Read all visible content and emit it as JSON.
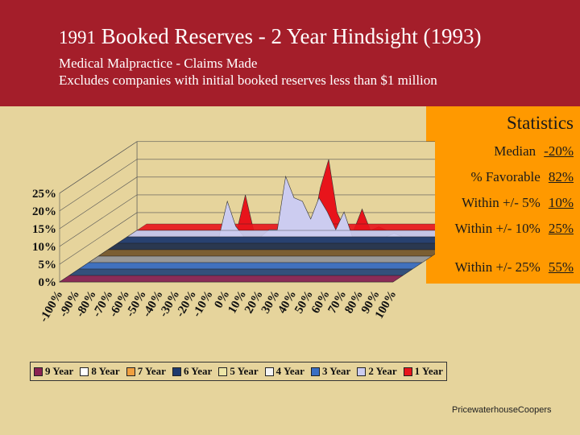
{
  "header": {
    "title_year": "1991",
    "title_rest": "Booked Reserves - 2 Year Hindsight (1993)",
    "subtitle_line1": "Medical Malpractice - Claims Made",
    "subtitle_line2": "Excludes companies with initial booked reserves less than $1 million"
  },
  "statistics": {
    "title": "Statistics",
    "rows": [
      {
        "label": "Median",
        "value": "-20%"
      },
      {
        "label": "% Favorable",
        "value": "82%"
      },
      {
        "label": "Within +/- 5%",
        "value": "10%"
      },
      {
        "label": "Within +/- 10%",
        "value": "25%"
      },
      {
        "label": "Within +/- 25%",
        "value": "55%"
      }
    ]
  },
  "footer": "PricewaterhouseCoopers",
  "chart_data": {
    "type": "area",
    "categories": [
      "-100%",
      "-90%",
      "-80%",
      "-70%",
      "-60%",
      "-50%",
      "-40%",
      "-30%",
      "-20%",
      "-10%",
      "0%",
      "10%",
      "20%",
      "30%",
      "40%",
      "50%",
      "60%",
      "70%",
      "80%",
      "90%",
      "100%"
    ],
    "x": [
      -100,
      -95,
      -90,
      -85,
      -80,
      -75,
      -70,
      -65,
      -60,
      -55,
      -50,
      -45,
      -40,
      -35,
      -30,
      -25,
      -20,
      -15,
      -10,
      -5,
      0,
      5,
      10,
      15,
      20,
      25,
      30,
      35,
      40,
      45,
      50,
      55,
      60,
      65,
      70,
      75,
      80,
      85,
      90,
      95,
      100
    ],
    "ylim": [
      0,
      25
    ],
    "y_ticks": [
      "0%",
      "5%",
      "10%",
      "15%",
      "20%",
      "25%"
    ],
    "colors": {
      "1 Year": "#E8141B",
      "2 Year": "#CCCCF0"
    },
    "series": [
      {
        "name": "1 Year",
        "values": [
          0,
          0,
          0,
          0,
          0,
          0,
          0,
          0,
          0,
          0,
          0,
          0,
          0,
          10,
          0,
          0,
          0,
          0,
          0,
          0,
          0,
          0,
          12,
          20,
          5,
          0,
          0,
          6,
          0,
          1,
          0,
          0,
          0,
          0,
          0,
          0,
          0,
          0,
          0,
          1,
          0
        ]
      },
      {
        "name": "2 Year",
        "values": [
          0,
          0,
          0,
          0,
          0,
          0,
          0,
          0,
          0,
          0,
          0,
          0,
          10,
          3,
          0,
          0,
          0,
          2,
          2,
          17,
          11,
          10,
          5,
          11,
          7,
          2,
          7,
          0,
          0,
          0,
          0,
          0,
          1,
          0,
          0,
          0,
          0,
          0,
          0,
          0,
          0
        ]
      },
      {
        "name": "3 Year",
        "values": [
          0,
          0,
          0,
          0,
          0,
          0,
          0,
          0,
          0,
          0,
          0,
          0,
          0,
          0,
          0,
          0,
          0,
          0,
          0,
          0,
          0,
          0,
          0,
          0,
          0,
          0,
          0,
          0,
          0,
          0,
          0,
          0,
          0,
          0,
          0,
          0,
          0,
          0,
          0,
          0,
          0
        ]
      },
      {
        "name": "4 Year",
        "values": [
          0,
          0,
          0,
          0,
          0,
          0,
          0,
          0,
          0,
          0,
          0,
          0,
          0,
          0,
          0,
          0,
          0,
          0,
          0,
          0,
          0,
          0,
          0,
          0,
          0,
          0,
          0,
          0,
          0,
          0,
          0,
          0,
          0,
          0,
          0,
          0,
          0,
          0,
          0,
          0,
          0
        ]
      },
      {
        "name": "5 Year",
        "values": [
          0,
          0,
          0,
          0,
          0,
          0,
          0,
          0,
          0,
          0,
          0,
          0,
          0,
          0,
          0,
          0,
          0,
          0,
          0,
          0,
          0,
          0,
          0,
          0,
          0,
          0,
          0,
          0,
          0,
          0,
          0,
          0,
          0,
          0,
          0,
          0,
          0,
          0,
          0,
          0,
          0
        ]
      },
      {
        "name": "6 Year",
        "values": [
          0,
          0,
          0,
          0,
          0,
          0,
          0,
          0,
          0,
          0,
          0,
          0,
          0,
          0,
          0,
          0,
          0,
          0,
          0,
          0,
          0,
          0,
          0,
          0,
          0,
          0,
          0,
          0,
          0,
          0,
          0,
          0,
          0,
          0,
          0,
          0,
          0,
          0,
          0,
          0,
          0
        ]
      },
      {
        "name": "7 Year",
        "values": [
          0,
          0,
          0,
          0,
          0,
          0,
          0,
          0,
          0,
          0,
          0,
          0,
          0,
          0,
          0,
          0,
          0,
          0,
          0,
          0,
          0,
          0,
          0,
          0,
          0,
          0,
          0,
          0,
          0,
          0,
          0,
          0,
          0,
          0,
          0,
          0,
          0,
          0,
          0,
          0,
          0
        ]
      },
      {
        "name": "8 Year",
        "values": [
          0,
          0,
          0,
          0,
          0,
          0,
          0,
          0,
          0,
          0,
          0,
          0,
          0,
          0,
          0,
          0,
          0,
          0,
          0,
          0,
          0,
          0,
          0,
          0,
          0,
          0,
          0,
          0,
          0,
          0,
          0,
          0,
          0,
          0,
          0,
          0,
          0,
          0,
          0,
          0,
          0
        ]
      },
      {
        "name": "9 Year",
        "values": [
          0,
          0,
          0,
          0,
          0,
          0,
          0,
          0,
          0,
          0,
          0,
          0,
          0,
          0,
          0,
          0,
          0,
          0,
          0,
          0,
          0,
          0,
          0,
          0,
          0,
          0,
          0,
          0,
          0,
          0,
          0,
          0,
          0,
          0,
          0,
          0,
          0,
          0,
          0,
          0,
          0
        ]
      }
    ],
    "legend": [
      {
        "name": "9 Year",
        "color": "#8B2252"
      },
      {
        "name": "8 Year",
        "color": "#FFFFFF"
      },
      {
        "name": "7 Year",
        "color": "#F0A040"
      },
      {
        "name": "6 Year",
        "color": "#1E3A6E"
      },
      {
        "name": "5 Year",
        "color": "#EDE6A6"
      },
      {
        "name": "4 Year",
        "color": "#F4F4F4"
      },
      {
        "name": "3 Year",
        "color": "#3A6FC4"
      },
      {
        "name": "2 Year",
        "color": "#CCCCF0"
      },
      {
        "name": "1 Year",
        "color": "#E8141B"
      }
    ],
    "legend_position": "bottom",
    "grid": true
  }
}
